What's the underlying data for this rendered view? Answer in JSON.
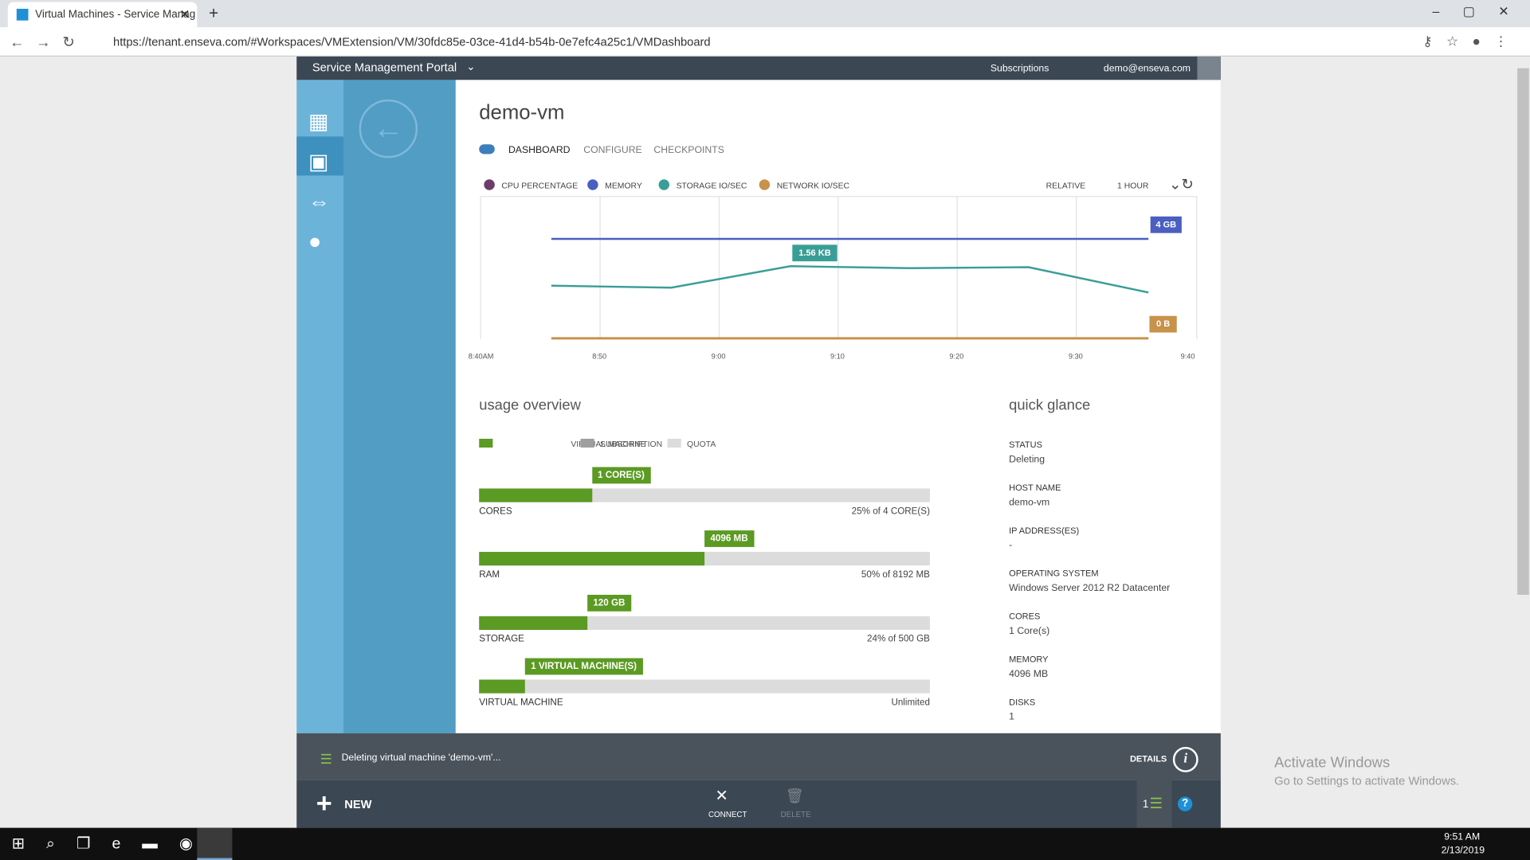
{
  "browser": {
    "tab_title": "Virtual Machines - Service Manag",
    "url": "https://tenant.enseva.com/#Workspaces/VMExtension/VM/30fdc85e-03ce-41d4-b54b-0e7efc4a25c1/VMDashboard"
  },
  "header": {
    "title": "Service Management Portal",
    "subscriptions": "Subscriptions",
    "user": "demo@enseva.com"
  },
  "vm": {
    "name": "demo-vm",
    "tabs": [
      "DASHBOARD",
      "CONFIGURE",
      "CHECKPOINTS"
    ]
  },
  "monitor": {
    "legend": [
      {
        "label": "CPU PERCENTAGE",
        "color": "#6b3d6b"
      },
      {
        "label": "MEMORY",
        "color": "#4a5fc1"
      },
      {
        "label": "STORAGE IO/SEC",
        "color": "#3a9e96"
      },
      {
        "label": "NETWORK IO/SEC",
        "color": "#c8924a"
      }
    ],
    "range": "RELATIVE",
    "period": "1 HOUR",
    "x_labels": [
      "8:40AM",
      "8:50",
      "9:00",
      "9:10",
      "9:20",
      "9:30",
      "9:40"
    ],
    "callouts": {
      "memory": "4 GB",
      "storage": "1.56 KB",
      "network": "0 B"
    }
  },
  "usage": {
    "title": "usage overview",
    "legend": [
      "VIRTUAL MACHINE",
      "SUBSCRIPTION",
      "QUOTA"
    ],
    "rows": [
      {
        "label": "CORES",
        "tag": "1 CORE(S)",
        "percent": 25,
        "summary": "25% of 4 CORE(S)"
      },
      {
        "label": "RAM",
        "tag": "4096 MB",
        "percent": 50,
        "summary": "50% of 8192 MB"
      },
      {
        "label": "STORAGE",
        "tag": "120 GB",
        "percent": 24,
        "summary": "24% of 500 GB"
      },
      {
        "label": "VIRTUAL MACHINE",
        "tag": "1 VIRTUAL MACHINE(S)",
        "summary": "Unlimited"
      }
    ]
  },
  "glance": {
    "title": "quick glance",
    "items": [
      {
        "label": "STATUS",
        "value": "Deleting"
      },
      {
        "label": "HOST NAME",
        "value": "demo-vm"
      },
      {
        "label": "IP ADDRESS(ES)",
        "value": "-"
      },
      {
        "label": "OPERATING SYSTEM",
        "value": "Windows Server 2012 R2 Datacenter"
      },
      {
        "label": "CORES",
        "value": "1 Core(s)"
      },
      {
        "label": "MEMORY",
        "value": "4096 MB"
      },
      {
        "label": "DISKS",
        "value": "1"
      }
    ]
  },
  "notification": {
    "message": "Deleting virtual machine 'demo-vm'...",
    "details": "DETAILS"
  },
  "commands": {
    "new": "NEW",
    "connect": "CONNECT",
    "delete": "DELETE",
    "count": "1"
  },
  "watermark": {
    "title": "Activate Windows",
    "text": "Go to Settings to activate Windows."
  },
  "taskbar": {
    "time": "9:51 AM",
    "date": "2/13/2019"
  }
}
